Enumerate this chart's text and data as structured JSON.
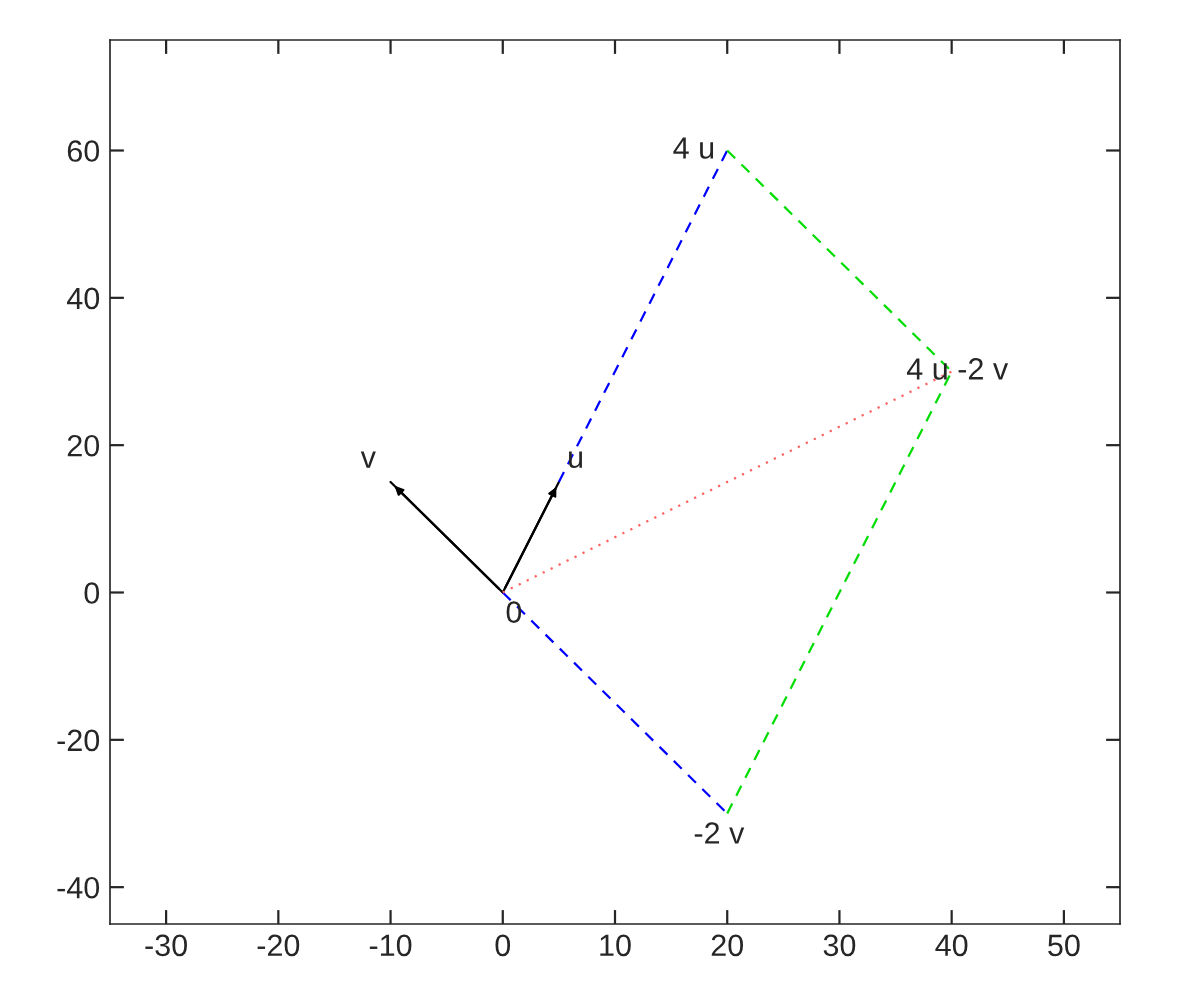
{
  "chart_data": {
    "type": "line",
    "series": [
      {
        "color": "#000000",
        "x": [
          0,
          5
        ],
        "values": [
          0,
          15
        ],
        "line_style": "solid"
      },
      {
        "color": "#000000",
        "x": [
          0,
          -10
        ],
        "values": [
          0,
          15
        ],
        "line_style": "solid"
      },
      {
        "color": "#0000ff",
        "x": [
          5,
          20
        ],
        "values": [
          15,
          60
        ],
        "line_style": "dashed"
      },
      {
        "color": "#0000ff",
        "x": [
          0,
          20
        ],
        "values": [
          0,
          -30
        ],
        "line_style": "dashed"
      },
      {
        "color": "#00dd00",
        "x": [
          20,
          40
        ],
        "values": [
          60,
          30
        ],
        "line_style": "dashed"
      },
      {
        "color": "#00dd00",
        "x": [
          20,
          40
        ],
        "values": [
          -30,
          30
        ],
        "line_style": "dashed"
      },
      {
        "color": "#ff6060",
        "x": [
          0,
          40
        ],
        "values": [
          0,
          30
        ],
        "line_style": "dotted"
      }
    ],
    "annotations": [
      {
        "text": "u",
        "x": 5,
        "y": 15
      },
      {
        "text": "v",
        "x": -10,
        "y": 15
      },
      {
        "text": "0",
        "x": 0,
        "y": 0
      },
      {
        "text": "4 u",
        "x": 20,
        "y": 60
      },
      {
        "text": "4 u -2 v",
        "x": 40,
        "y": 30
      },
      {
        "text": "-2 v",
        "x": 20,
        "y": -30
      }
    ],
    "xlim": [
      -35,
      55
    ],
    "ylim": [
      -45,
      75
    ],
    "xticks": [
      -30,
      -20,
      -10,
      0,
      10,
      20,
      30,
      40,
      50
    ],
    "yticks": [
      -40,
      -20,
      0,
      20,
      40,
      60
    ],
    "grid": false,
    "legend": false
  }
}
